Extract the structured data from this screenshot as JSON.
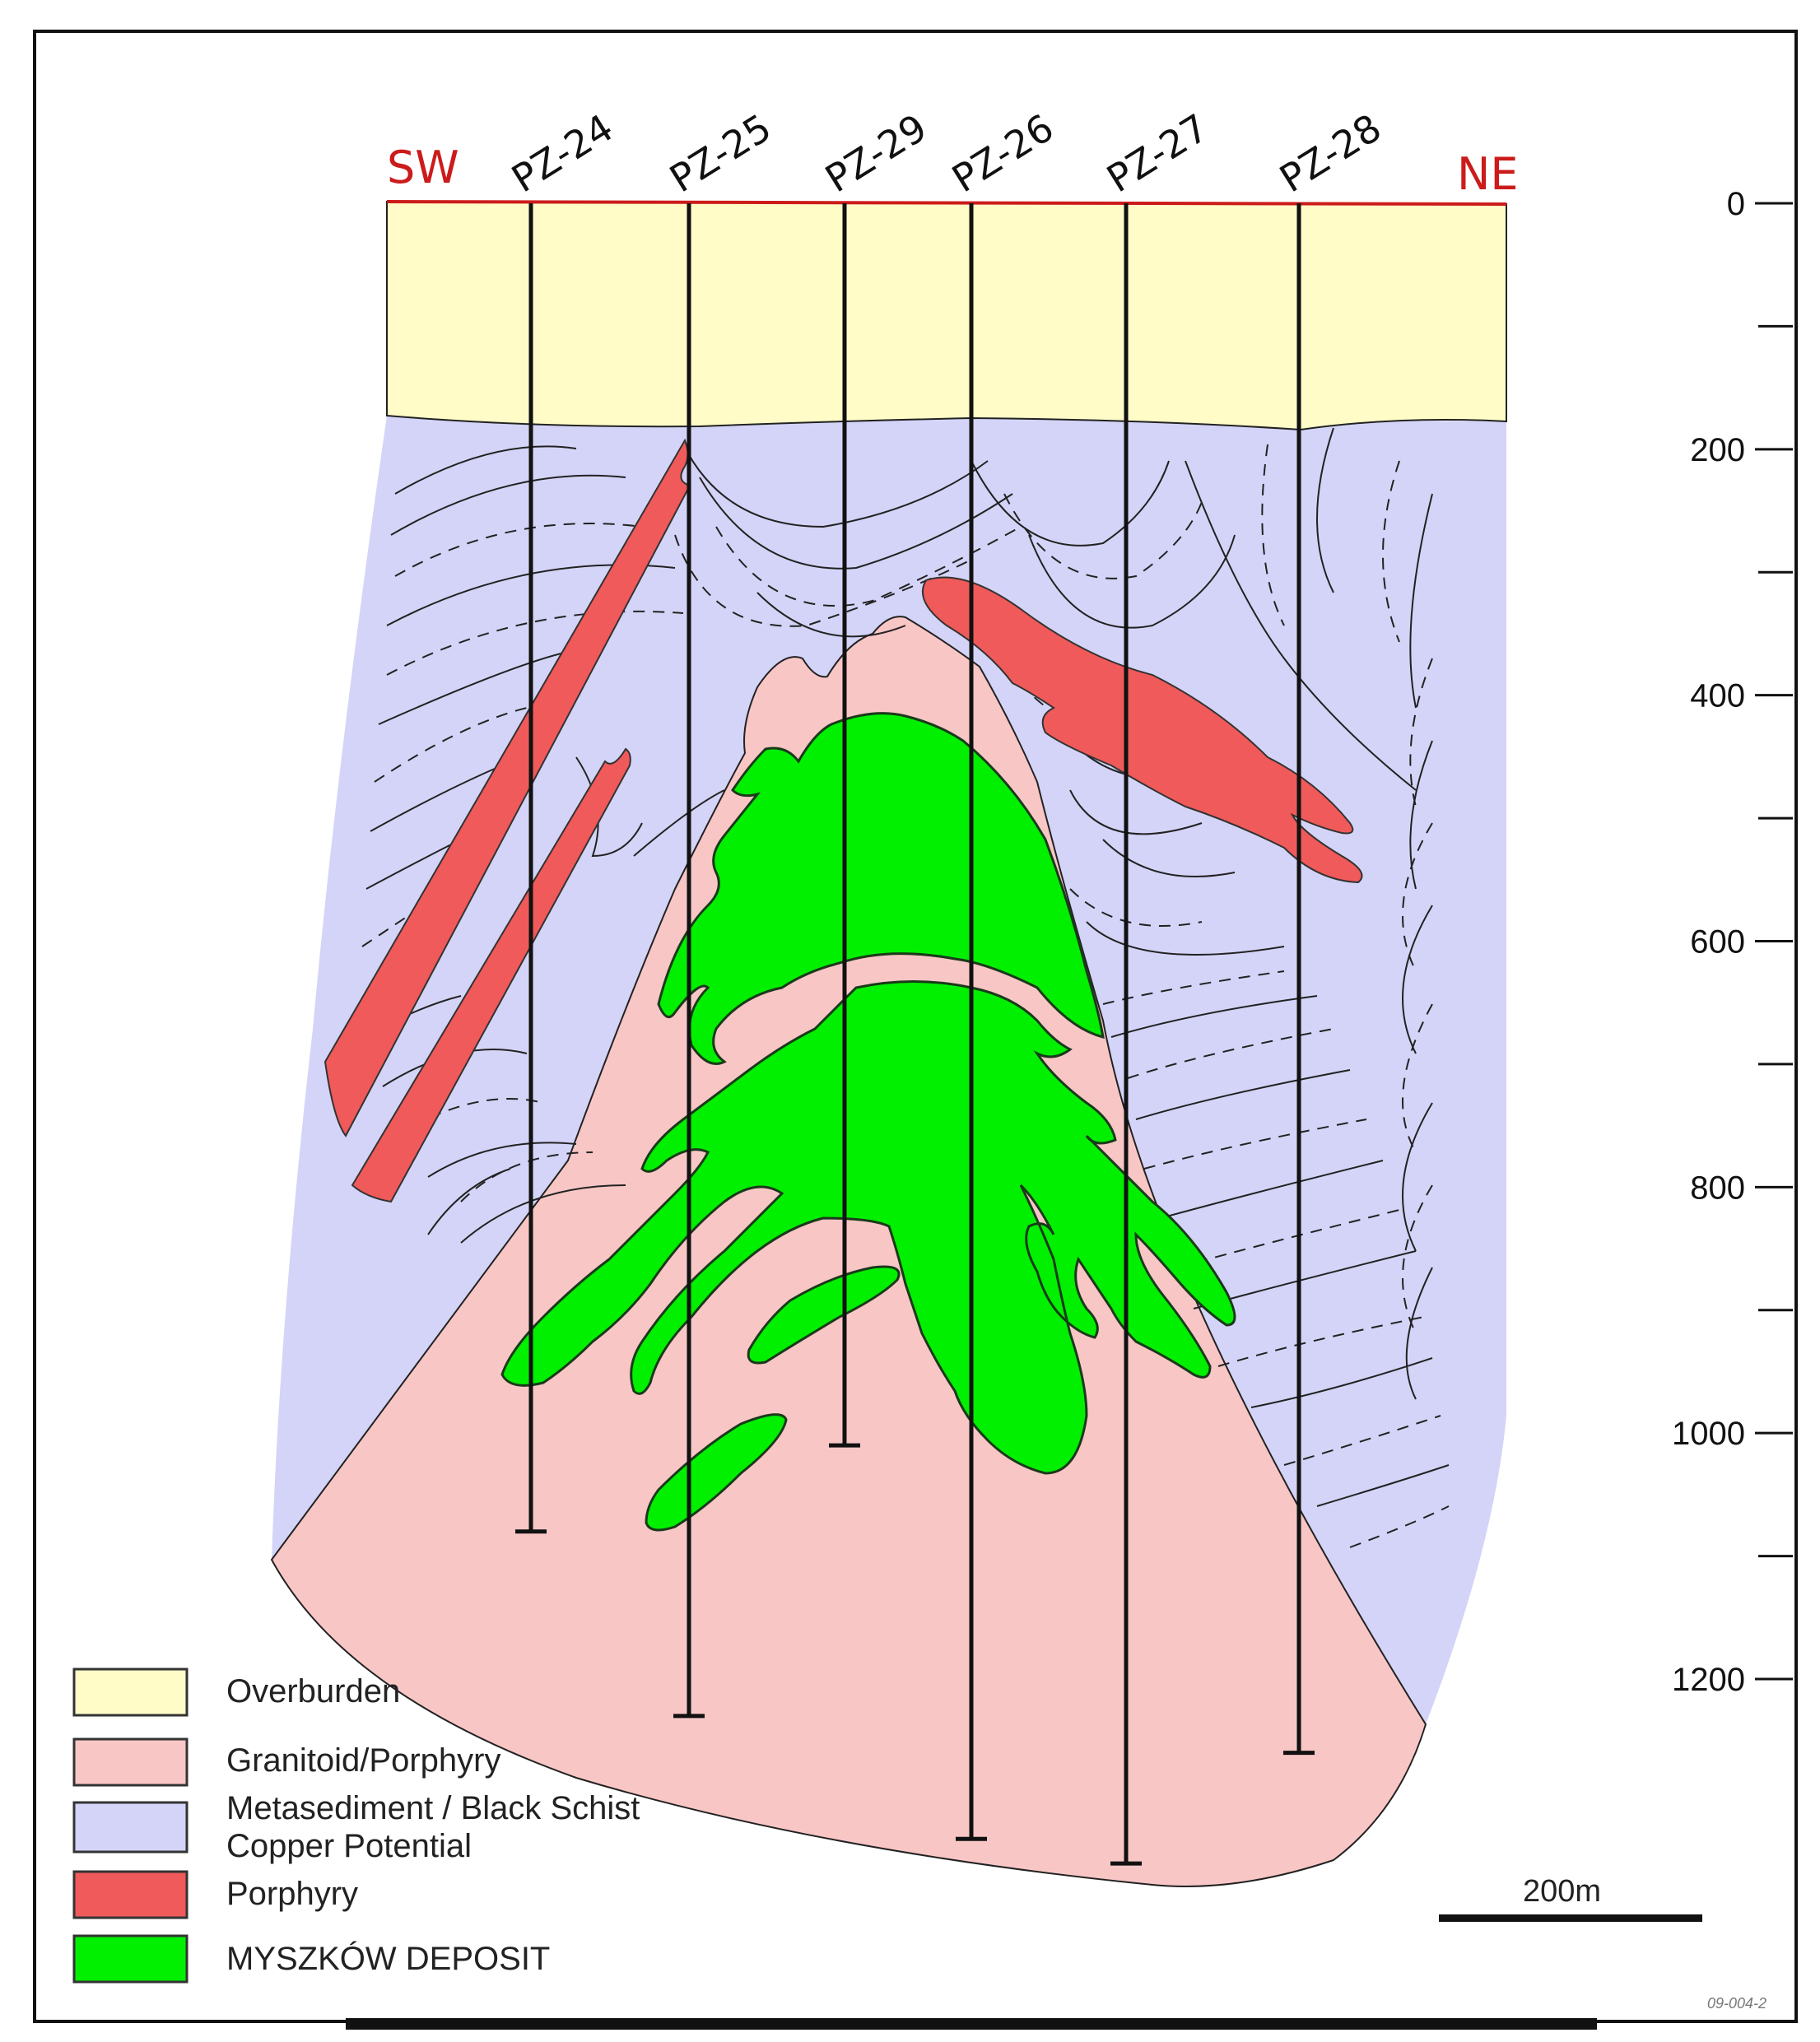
{
  "section": {
    "direction_left": "SW",
    "direction_right": "NE",
    "drillholes": [
      {
        "name": "PZ-24",
        "depth": 1080
      },
      {
        "name": "PZ-25",
        "depth": 1230
      },
      {
        "name": "PZ-29",
        "depth": 1010
      },
      {
        "name": "PZ-26",
        "depth": 1330
      },
      {
        "name": "PZ-27",
        "depth": 1350
      },
      {
        "name": "PZ-28",
        "depth": 1260
      }
    ]
  },
  "depth_axis": {
    "ticks": [
      "0",
      "200",
      "400",
      "600",
      "800",
      "1000",
      "1200"
    ]
  },
  "legend": [
    {
      "label": "Overburden",
      "color": "#FFFCC8"
    },
    {
      "label": "Granitoid/Porphyry",
      "color": "#F9C6C6"
    },
    {
      "label": "Metasediment / Black Schist",
      "label2": "Copper Potential",
      "color": "#D4D4F8"
    },
    {
      "label": "Porphyry",
      "color": "#F05A5A"
    },
    {
      "label": "MYSZKÓW DEPOSIT",
      "color": "#00F000"
    }
  ],
  "scale_bar": {
    "label": "200m"
  },
  "figure_code": "09-004-2",
  "colors": {
    "overburden": "#FFFCC8",
    "granitoid": "#F9C6C6",
    "metasediment": "#D4D4F8",
    "porphyry": "#F05A5A",
    "deposit": "#00F000",
    "section_line": "#cc1b1b"
  }
}
